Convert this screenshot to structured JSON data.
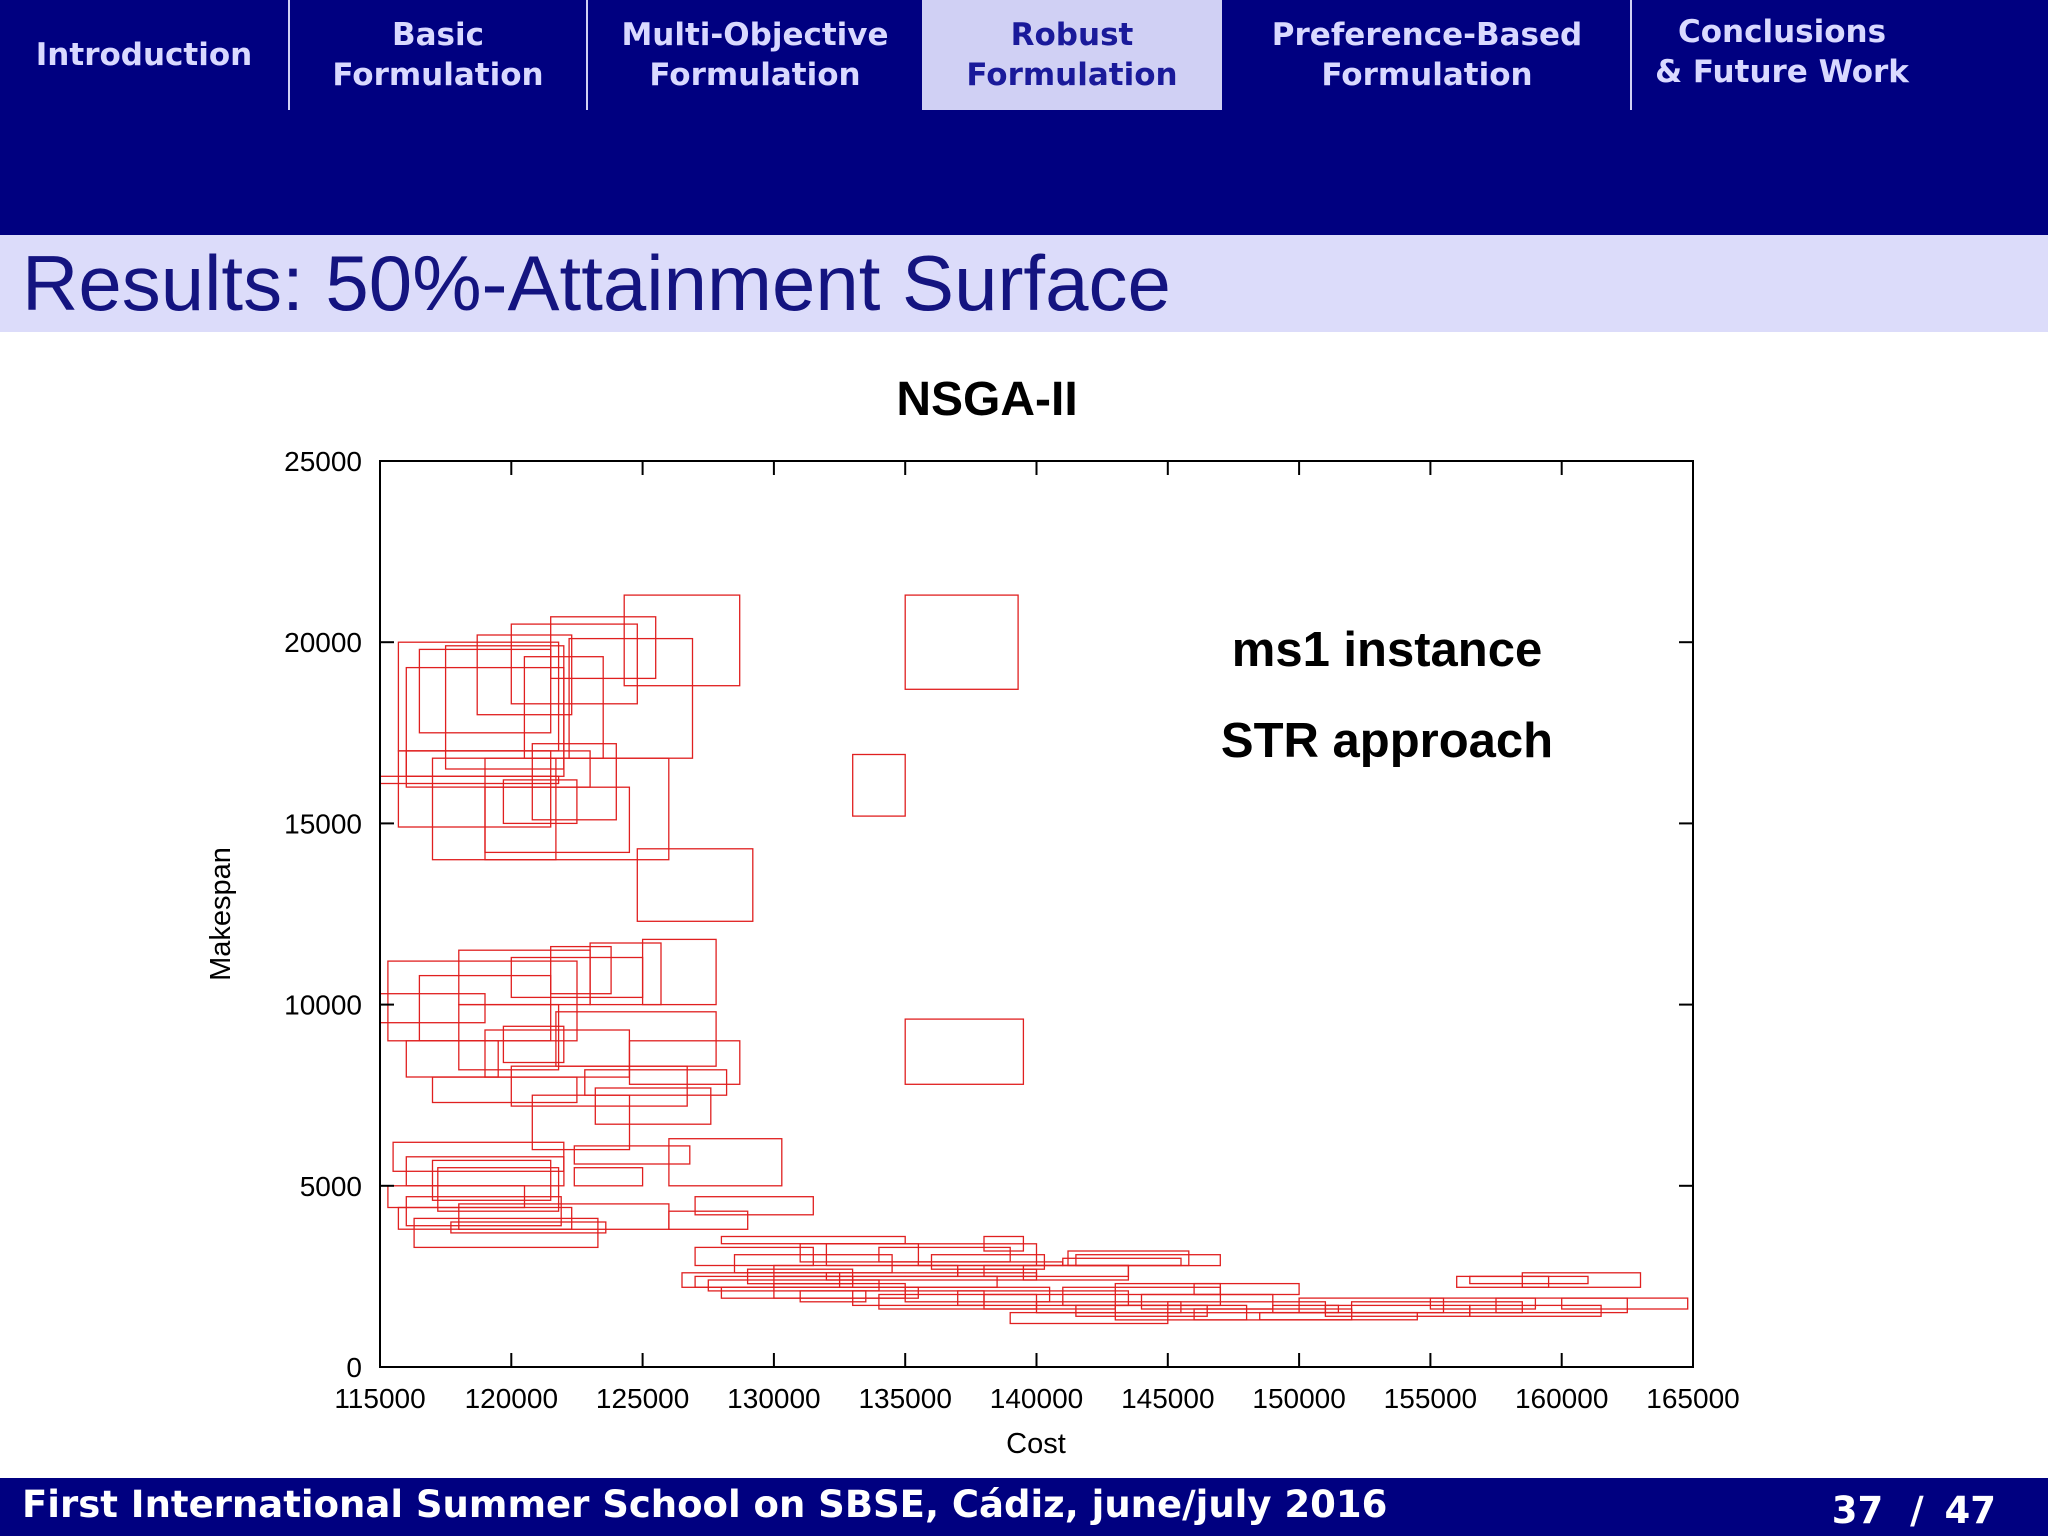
{
  "nav": {
    "tabs": [
      {
        "label": "Introduction",
        "active": false
      },
      {
        "label": "Basic\nFormulation",
        "active": false
      },
      {
        "label": "Multi-Objective\nFormulation",
        "active": false
      },
      {
        "label": "Robust\nFormulation",
        "active": true
      },
      {
        "label": "Preference-Based\nFormulation",
        "active": false
      },
      {
        "label": "Conclusions\n& Future Work",
        "active": false
      }
    ]
  },
  "slide": {
    "title": "Results: 50%-Attainment Surface"
  },
  "footer": {
    "text": "First International Summer School on SBSE, Cádiz, june/july 2016",
    "page_current": "37",
    "page_sep": "/",
    "page_total": "47"
  },
  "colors": {
    "nav_bg": "#000080",
    "active_tab_bg": "#d0d0f4",
    "title_bar_bg": "#dcdcfa",
    "title_text": "#141480",
    "box_stroke": "#e02020"
  },
  "chart_data": {
    "type": "box-scatter",
    "title": "NSGA-II",
    "xlabel": "Cost",
    "ylabel": "Makespan",
    "xlim": [
      115000,
      165000
    ],
    "ylim": [
      0,
      25000
    ],
    "x_ticks": [
      "115000",
      "120000",
      "125000",
      "130000",
      "135000",
      "140000",
      "145000",
      "150000",
      "155000",
      "160000",
      "165000"
    ],
    "y_ticks": [
      "0",
      "5000",
      "10000",
      "15000",
      "20000",
      "25000"
    ],
    "annotations": [
      "ms1 instance",
      "STR approach"
    ],
    "grid": false,
    "series": [
      {
        "mark": "rectangle (cost range × makespan range)",
        "color": "#e02020",
        "boxes": [
          [
            115700,
            121800,
            17000,
            20000
          ],
          [
            116000,
            122000,
            16300,
            19300
          ],
          [
            116500,
            121500,
            17500,
            19800
          ],
          [
            117500,
            122000,
            16500,
            19900
          ],
          [
            118700,
            122300,
            18000,
            20200
          ],
          [
            120000,
            124800,
            18300,
            20500
          ],
          [
            121500,
            125500,
            19000,
            20700
          ],
          [
            124300,
            128700,
            18800,
            21300
          ],
          [
            122200,
            126900,
            16800,
            20100
          ],
          [
            120500,
            123500,
            16800,
            19600
          ],
          [
            115000,
            121800,
            16100,
            16300
          ],
          [
            116000,
            123000,
            16000,
            17000
          ],
          [
            115700,
            121500,
            14900,
            17000
          ],
          [
            117000,
            121700,
            14000,
            16800
          ],
          [
            119000,
            124500,
            14200,
            16000
          ],
          [
            119700,
            122500,
            15000,
            16200
          ],
          [
            120800,
            124000,
            15100,
            17200
          ],
          [
            119000,
            126000,
            14000,
            16800
          ],
          [
            124800,
            129200,
            12300,
            14300
          ],
          [
            115300,
            122500,
            9000,
            11200
          ],
          [
            115000,
            119000,
            9500,
            10300
          ],
          [
            116500,
            121500,
            9000,
            10800
          ],
          [
            118000,
            123000,
            10000,
            11500
          ],
          [
            120000,
            125000,
            10200,
            11300
          ],
          [
            121500,
            123800,
            10300,
            11600
          ],
          [
            123000,
            125700,
            10000,
            11700
          ],
          [
            125000,
            127800,
            10000,
            11800
          ],
          [
            118000,
            121800,
            8200,
            10000
          ],
          [
            119700,
            122000,
            8400,
            9400
          ],
          [
            116000,
            119500,
            8000,
            9000
          ],
          [
            121700,
            127800,
            8300,
            9800
          ],
          [
            124500,
            128700,
            7800,
            9000
          ],
          [
            119000,
            124500,
            8000,
            9300
          ],
          [
            117000,
            122500,
            7300,
            8000
          ],
          [
            122800,
            128200,
            7500,
            8200
          ],
          [
            120000,
            126700,
            7200,
            8300
          ],
          [
            120800,
            124500,
            6000,
            7500
          ],
          [
            123200,
            127600,
            6700,
            7700
          ],
          [
            126000,
            130300,
            5000,
            6300
          ],
          [
            115500,
            122000,
            5400,
            6200
          ],
          [
            116000,
            122000,
            5000,
            5800
          ],
          [
            117000,
            121500,
            4600,
            5700
          ],
          [
            117200,
            121800,
            4300,
            5500
          ],
          [
            122400,
            126800,
            5600,
            6100
          ],
          [
            122400,
            125000,
            5000,
            5500
          ],
          [
            115300,
            120500,
            4400,
            5000
          ],
          [
            115700,
            122300,
            3800,
            4400
          ],
          [
            116000,
            121900,
            3900,
            4700
          ],
          [
            117700,
            123600,
            3700,
            4000
          ],
          [
            116300,
            123300,
            3300,
            4100
          ],
          [
            127000,
            131500,
            4200,
            4700
          ],
          [
            128000,
            135000,
            3400,
            3600
          ],
          [
            128500,
            134500,
            2600,
            3100
          ],
          [
            127000,
            131500,
            2800,
            3300
          ],
          [
            131000,
            135500,
            2900,
            3400
          ],
          [
            137000,
            140000,
            2500,
            2700
          ],
          [
            132000,
            140000,
            2800,
            3400
          ],
          [
            138000,
            139500,
            3200,
            3600
          ],
          [
            138000,
            143500,
            2500,
            2800
          ],
          [
            141000,
            145500,
            2800,
            3000
          ],
          [
            141200,
            145800,
            2800,
            3200
          ],
          [
            141500,
            147000,
            2800,
            3100
          ],
          [
            146000,
            150000,
            2000,
            2300
          ],
          [
            143000,
            147000,
            2000,
            2300
          ],
          [
            135500,
            141000,
            2800,
            2900
          ],
          [
            136000,
            140300,
            2700,
            3100
          ],
          [
            126500,
            132500,
            2200,
            2600
          ],
          [
            127000,
            133000,
            2200,
            2500
          ],
          [
            127500,
            134000,
            2100,
            2400
          ],
          [
            128000,
            135500,
            1900,
            2200
          ],
          [
            130000,
            135000,
            1900,
            2300
          ],
          [
            133000,
            138000,
            1700,
            2100
          ],
          [
            134000,
            140000,
            1600,
            2000
          ],
          [
            135000,
            140500,
            1800,
            2200
          ],
          [
            138000,
            143000,
            1600,
            2000
          ],
          [
            137000,
            143500,
            1700,
            2100
          ],
          [
            140000,
            145500,
            1500,
            1800
          ],
          [
            141500,
            146500,
            1400,
            1700
          ],
          [
            143000,
            148000,
            1300,
            1700
          ],
          [
            145000,
            151000,
            1500,
            1800
          ],
          [
            146000,
            152000,
            1300,
            1600
          ],
          [
            148500,
            154500,
            1300,
            1500
          ],
          [
            150000,
            155500,
            1500,
            1900
          ],
          [
            151000,
            156500,
            1400,
            1700
          ],
          [
            152000,
            158500,
            1500,
            1800
          ],
          [
            155000,
            159000,
            1600,
            1900
          ],
          [
            156500,
            161500,
            1400,
            1700
          ],
          [
            157500,
            162500,
            1500,
            1900
          ],
          [
            160000,
            164800,
            1600,
            1900
          ],
          [
            156000,
            159500,
            2200,
            2500
          ],
          [
            156500,
            161000,
            2300,
            2500
          ],
          [
            158500,
            163000,
            2200,
            2600
          ],
          [
            139500,
            143500,
            2400,
            2800
          ],
          [
            134000,
            139000,
            2900,
            3300
          ],
          [
            126000,
            129000,
            3800,
            4300
          ],
          [
            118000,
            126000,
            3800,
            4500
          ],
          [
            130000,
            137000,
            2500,
            2800
          ],
          [
            131000,
            133500,
            1800,
            2100
          ],
          [
            129000,
            133000,
            2300,
            2700
          ],
          [
            133000,
            135000,
            15200,
            16900
          ],
          [
            135000,
            139300,
            18700,
            21300
          ],
          [
            135000,
            139500,
            7800,
            9600
          ],
          [
            132000,
            140000,
            2400,
            2600
          ],
          [
            141000,
            147000,
            1700,
            2200
          ],
          [
            144000,
            149000,
            1600,
            2000
          ],
          [
            130000,
            138500,
            2200,
            2500
          ],
          [
            139000,
            145000,
            1200,
            1500
          ],
          [
            149000,
            151500,
            1500,
            1700
          ]
        ]
      }
    ]
  }
}
